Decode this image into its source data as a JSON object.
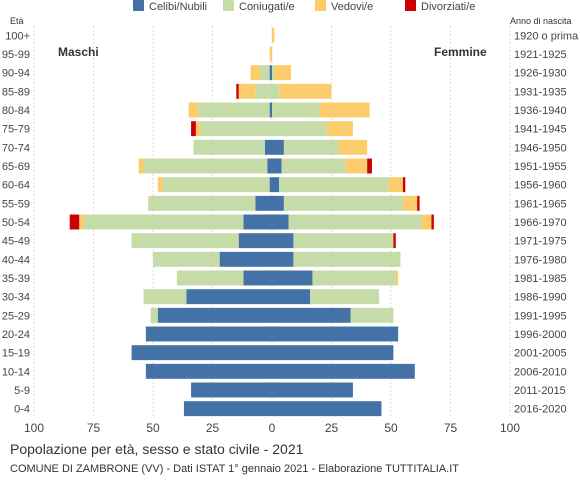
{
  "caption": {
    "title": "Popolazione per età, sesso e stato civile - 2021",
    "subtitle": "COMUNE DI ZAMBRONE (VV) - Dati ISTAT 1° gennaio 2021 - Elaborazione TUTTITALIA.IT"
  },
  "chart_data": {
    "type": "bar",
    "orientation": "horizontal-population-pyramid",
    "left_axis_title": "Età",
    "right_axis_title": "Anno di nascita",
    "left_group_label": "Maschi",
    "right_group_label": "Femmine",
    "xlim": [
      -100,
      100
    ],
    "x_ticks": [
      "100",
      "75",
      "50",
      "25",
      "0",
      "25",
      "50",
      "75",
      "100"
    ],
    "grid": true,
    "legend_position": "top",
    "legend": [
      {
        "name": "Celibi/Nubili",
        "color": "#4472a6"
      },
      {
        "name": "Coniugati/e",
        "color": "#c6dca8"
      },
      {
        "name": "Vedovi/e",
        "color": "#fccc6c"
      },
      {
        "name": "Divorziati/e",
        "color": "#cc0000"
      }
    ],
    "age_groups": [
      "100+",
      "95-99",
      "90-94",
      "85-89",
      "80-84",
      "75-79",
      "70-74",
      "65-69",
      "60-64",
      "55-59",
      "50-54",
      "45-49",
      "40-44",
      "35-39",
      "30-34",
      "25-29",
      "20-24",
      "15-19",
      "10-14",
      "5-9",
      "0-4"
    ],
    "birth_years": [
      "1920 o prima",
      "1921-1925",
      "1926-1930",
      "1931-1935",
      "1936-1940",
      "1941-1945",
      "1946-1950",
      "1951-1955",
      "1956-1960",
      "1961-1965",
      "1966-1970",
      "1971-1975",
      "1976-1980",
      "1981-1985",
      "1986-1990",
      "1991-1995",
      "1996-2000",
      "2001-2005",
      "2006-2010",
      "2011-2015",
      "2016-2020"
    ],
    "males": {
      "celibi": [
        0,
        0,
        1,
        0,
        1,
        0,
        3,
        2,
        1,
        7,
        12,
        14,
        22,
        12,
        36,
        48,
        53,
        59,
        53,
        34,
        37
      ],
      "coniugati": [
        0,
        0,
        4,
        7,
        30,
        30,
        30,
        52,
        45,
        45,
        67,
        45,
        28,
        28,
        18,
        3,
        0,
        0,
        0,
        0,
        0
      ],
      "vedovi": [
        0,
        1,
        4,
        7,
        4,
        2,
        0,
        2,
        2,
        0,
        2,
        0,
        0,
        0,
        0,
        0,
        0,
        0,
        0,
        0,
        0
      ],
      "divorziati": [
        0,
        0,
        0,
        1,
        0,
        2,
        0,
        0,
        0,
        0,
        4,
        0,
        0,
        0,
        0,
        0,
        0,
        0,
        0,
        0,
        0
      ]
    },
    "females": {
      "nubili": [
        0,
        0,
        0,
        0,
        0,
        0,
        5,
        4,
        3,
        5,
        7,
        9,
        9,
        17,
        16,
        33,
        53,
        51,
        60,
        34,
        46
      ],
      "coniugate": [
        0,
        0,
        1,
        3,
        20,
        23,
        23,
        27,
        46,
        50,
        56,
        42,
        45,
        35,
        29,
        18,
        0,
        0,
        0,
        0,
        0
      ],
      "vedove": [
        1,
        0,
        7,
        22,
        21,
        11,
        12,
        9,
        6,
        6,
        4,
        0,
        0,
        1,
        0,
        0,
        0,
        0,
        0,
        0,
        0
      ],
      "divorziate": [
        0,
        0,
        0,
        0,
        0,
        0,
        0,
        2,
        1,
        1,
        1,
        1,
        0,
        0,
        0,
        0,
        0,
        0,
        0,
        0,
        0
      ]
    }
  }
}
